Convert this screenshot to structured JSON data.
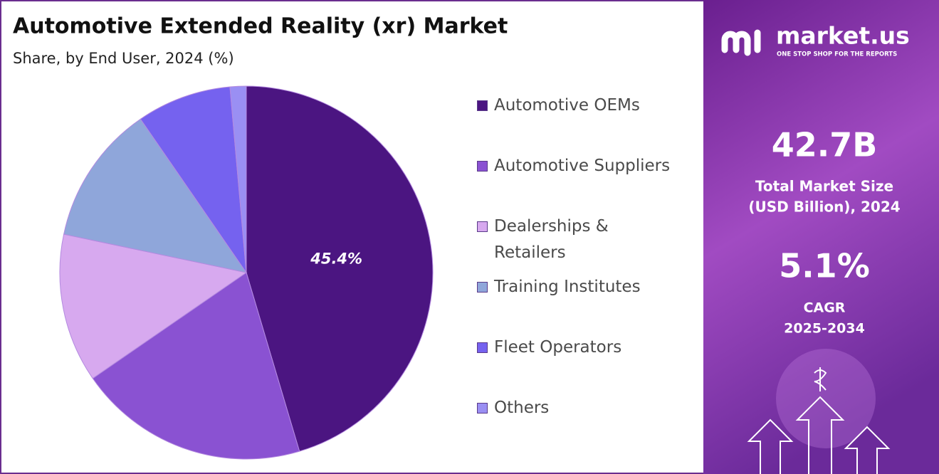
{
  "chart_data": {
    "type": "pie",
    "title": "Automotive Extended Reality (xr) Market",
    "subtitle": "Share, by End User, 2024 (%)",
    "categories": [
      "Automotive OEMs",
      "Automotive Suppliers",
      "Dealerships & Retailers",
      "Training Institutes",
      "Fleet Operators",
      "Others"
    ],
    "values": [
      45.4,
      20.0,
      12.9,
      12.1,
      8.2,
      1.4
    ],
    "value_labels": [
      "45.4%",
      null,
      null,
      null,
      null,
      null
    ],
    "colors": [
      "#4b1581",
      "#8a52d2",
      "#d7a9ef",
      "#8fa6da",
      "#7562ef",
      "#9a8ff3"
    ],
    "legend": "right"
  },
  "brand": {
    "name": "market.us",
    "tagline": "ONE STOP SHOP FOR THE REPORTS"
  },
  "stats": [
    {
      "value": "42.7B",
      "label": [
        "Total Market Size",
        "(USD Billion), 2024"
      ]
    },
    {
      "value": "5.1%",
      "label": [
        "CAGR",
        "2025-2034"
      ]
    }
  ]
}
